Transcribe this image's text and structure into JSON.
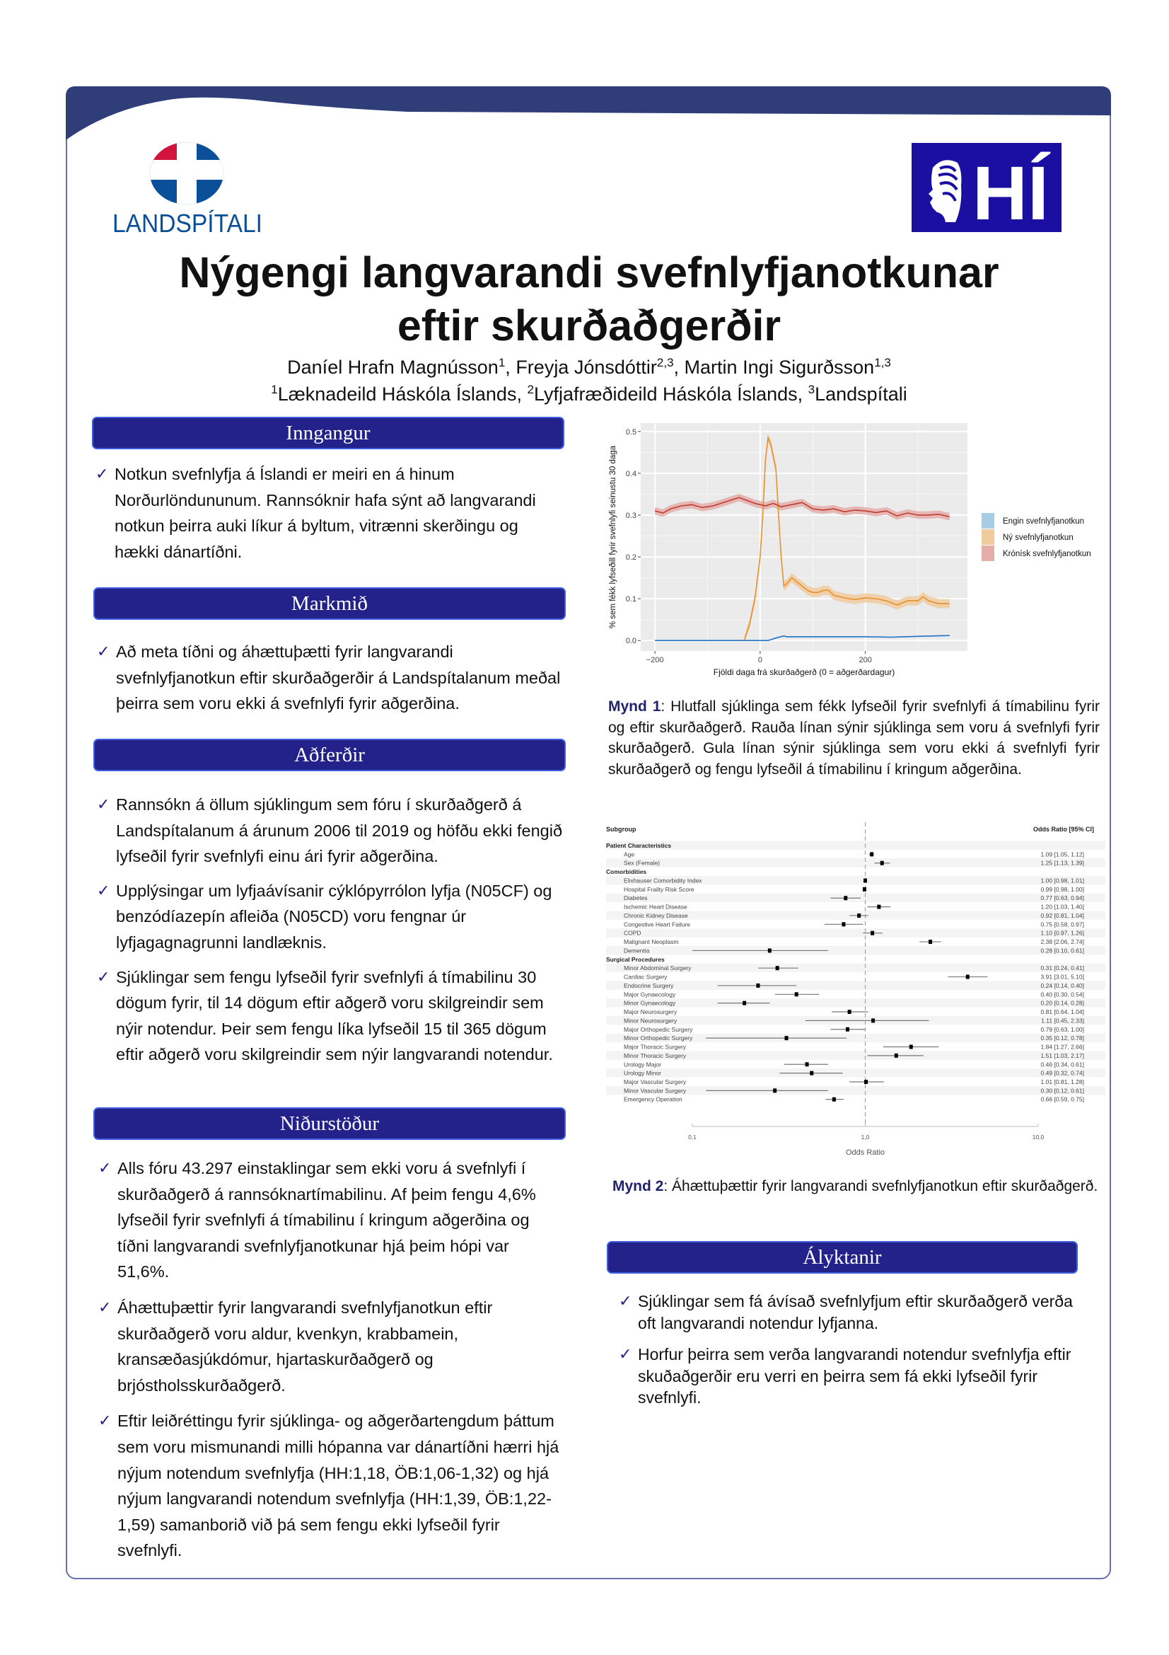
{
  "logos": {
    "left": {
      "text": "LANDSPÍTALI",
      "colors": {
        "red": "#d0143c",
        "blue": "#0c4f99"
      }
    },
    "right": {
      "text": "HÍ",
      "background": "#1a0fa0"
    }
  },
  "header": {
    "title_line1": "Nýgengi langvarandi svefnlyfjanotkunar",
    "title_line2": "eftir skurðaðgerðir",
    "authors": [
      {
        "name": "Daníel Hrafn Magnússon",
        "sup": "1",
        "sep": ", "
      },
      {
        "name": "Freyja Jónsdóttir",
        "sup": "2,3",
        "sep": ", "
      },
      {
        "name": "Martin Ingi Sigurðsson",
        "sup": "1,3",
        "sep": ""
      }
    ],
    "affiliations": [
      {
        "sup": "1",
        "name": "Læknadeild Háskóla Íslands",
        "sep": ", "
      },
      {
        "sup": "2",
        "name": "Lyfjafræðideild Háskóla Íslands",
        "sep": ", "
      },
      {
        "sup": "3",
        "name": "Landspítali",
        "sep": ""
      }
    ]
  },
  "colors": {
    "section_header": "#22228a",
    "frame": "#2f3d78",
    "check": "#22228a"
  },
  "sections": {
    "inngangur": {
      "title": "Inngangur",
      "bullets": [
        "Notkun svefnlyfja á Íslandi er meiri en á hinum Norðurlöndununum. Rannsóknir hafa sýnt að langvarandi notkun þeirra auki líkur á byltum, vitrænni skerðingu og hækki dánartíðni."
      ]
    },
    "markmid": {
      "title": "Markmið",
      "bullets": [
        "Að meta tíðni og áhættuþætti fyrir langvarandi svefnlyfjanotkun eftir skurðaðgerðir á Landspítalanum meðal þeirra sem voru ekki á svefnlyfi fyrir aðgerðina."
      ]
    },
    "adferdir": {
      "title": "Aðferðir",
      "bullets": [
        "Rannsókn á öllum sjúklingum sem fóru í skurðaðgerð á Landspítalanum á árunum 2006 til 2019 og höfðu ekki fengið lyfseðil fyrir svefnlyfi einu ári fyrir aðgerðina.",
        "Upplýsingar um lyfjaávísanir cýklópyrrólon lyfja (N05CF) og benzódíazepín afleiða (N05CD) voru fengnar úr lyfjagagnagrunni landlæknis.",
        "Sjúklingar sem fengu lyfseðil fyrir svefnlyfi á tímabilinu 30 dögum fyrir, til 14 dögum eftir aðgerð voru skilgreindir sem nýir notendur. Þeir sem fengu líka lyfseðil 15 til 365 dögum eftir aðgerð voru skilgreindir sem nýir langvarandi notendur."
      ]
    },
    "nidurstodur": {
      "title": "Niðurstöður",
      "bullets": [
        "Alls fóru 43.297 einstaklingar sem ekki voru á svefnlyfi í skurðaðgerð á rannsóknartímabilinu. Af þeim fengu 4,6% lyfseðil fyrir svefnlyfi á tímabilinu í kringum aðgerðina og tíðni langvarandi svefnlyfjanotkunar hjá þeim hópi var 51,6%.",
        "Áhættuþættir fyrir langvarandi svefnlyfjanotkun eftir skurðaðgerð voru aldur, kvenkyn, krabbamein, kransæðasjúkdómur, hjartaskurðaðgerð og brjóstholsskurðaðgerð.",
        "Eftir leiðréttingu fyrir sjúklinga- og aðgerðartengdum þáttum sem voru mismunandi milli hópanna var dánartíðni hærri hjá nýjum notendum svefnlyfja (HH:1,18, ÖB:1,06-1,32) og hjá nýjum langvarandi notendum svefnlyfja (HH:1,39, ÖB:1,22-1,59) samanborið við þá sem fengu ekki lyfseðil fyrir svefnlyfi."
      ]
    },
    "alyktanir": {
      "title": "Ályktanir",
      "bullets": [
        "Sjúklingar sem fá ávísað svefnlyfjum eftir skurðaðgerð verða oft langvarandi notendur lyfjanna.",
        "Horfur þeirra sem verða langvarandi notendur svefnlyfja eftir skuðaðgerðir eru verri en þeirra sem fá ekki lyfseðil fyrir svefnlyfi."
      ]
    }
  },
  "figures": {
    "fig1_caption": {
      "label": "Mynd 1",
      "text": ": Hlutfall sjúklinga sem fékk lyfseðil fyrir svefnlyfi á tímabilinu fyrir og eftir skurðaðgerð. Rauða línan sýnir sjúklinga sem voru á svefnlyfi fyrir skurðaðgerð. Gula línan sýnir sjúklinga sem voru ekki á svefnlyfi fyrir skurðaðgerð og fengu lyfseðil á tímabilinu í kringum aðgerðina."
    },
    "fig2_caption": {
      "label": "Mynd 2",
      "text": ": Áhættuþættir fyrir langvarandi svefnlyfjanotkun eftir skurðaðgerð."
    }
  },
  "chart_data": [
    {
      "type": "line",
      "xlabel": "Fjöldi daga frá skurðaðgerð (0 = aðgerðardagur)",
      "ylabel": "% sem fékk lyfseðill fyrir svefnlyfi seinustu 30 daga",
      "xlim": [
        -227,
        394
      ],
      "ylim": [
        -0.025,
        0.52
      ],
      "xticks": [
        -200,
        0,
        200
      ],
      "xtick_labels": [
        "−200",
        "0",
        "200"
      ],
      "yticks": [
        0.0,
        0.1,
        0.2,
        0.3,
        0.4,
        0.5
      ],
      "ytick_labels": [
        "0.0",
        "0.1",
        "0.2",
        "0.3",
        "0.4",
        "0.5"
      ],
      "grid": true,
      "background": "#ebebeb",
      "legend_position": "right",
      "series": [
        {
          "name": "Engin svefnlyfjanotkun",
          "color": "#2272c3",
          "band_color": "#a6cde3",
          "ci_halfwidth": 0.001,
          "points": [
            [
              -200,
              0
            ],
            [
              15,
              0
            ],
            [
              30,
              0.006
            ],
            [
              45,
              0.011
            ],
            [
              50,
              0.009
            ],
            [
              100,
              0.009
            ],
            [
              200,
              0.009
            ],
            [
              250,
              0.008
            ],
            [
              300,
              0.01
            ],
            [
              360,
              0.012
            ]
          ]
        },
        {
          "name": "Ný svefnlyfjanotkun",
          "color": "#e8902a",
          "band_color": "#f0cba0",
          "ci_halfwidth": 0.011,
          "points": [
            [
              -30,
              0
            ],
            [
              -20,
              0.04
            ],
            [
              -10,
              0.1
            ],
            [
              0,
              0.2
            ],
            [
              5,
              0.3
            ],
            [
              10,
              0.43
            ],
            [
              15,
              0.485
            ],
            [
              20,
              0.47
            ],
            [
              30,
              0.41
            ],
            [
              35,
              0.3
            ],
            [
              40,
              0.2
            ],
            [
              45,
              0.13
            ],
            [
              50,
              0.135
            ],
            [
              60,
              0.15
            ],
            [
              70,
              0.14
            ],
            [
              80,
              0.13
            ],
            [
              90,
              0.12
            ],
            [
              100,
              0.115
            ],
            [
              110,
              0.115
            ],
            [
              120,
              0.12
            ],
            [
              130,
              0.12
            ],
            [
              140,
              0.108
            ],
            [
              160,
              0.102
            ],
            [
              180,
              0.098
            ],
            [
              200,
              0.102
            ],
            [
              220,
              0.1
            ],
            [
              240,
              0.095
            ],
            [
              260,
              0.085
            ],
            [
              280,
              0.095
            ],
            [
              300,
              0.095
            ],
            [
              310,
              0.105
            ],
            [
              320,
              0.095
            ],
            [
              340,
              0.088
            ],
            [
              360,
              0.088
            ]
          ]
        },
        {
          "name": "Krónísk svefnlyfjanotkun",
          "color": "#c23a2e",
          "band_color": "#e3aeaa",
          "ci_halfwidth": 0.009,
          "points": [
            [
              -200,
              0.31
            ],
            [
              -185,
              0.305
            ],
            [
              -170,
              0.315
            ],
            [
              -150,
              0.322
            ],
            [
              -130,
              0.325
            ],
            [
              -110,
              0.318
            ],
            [
              -90,
              0.322
            ],
            [
              -70,
              0.33
            ],
            [
              -50,
              0.338
            ],
            [
              -40,
              0.342
            ],
            [
              -25,
              0.335
            ],
            [
              -10,
              0.328
            ],
            [
              0,
              0.325
            ],
            [
              10,
              0.322
            ],
            [
              25,
              0.328
            ],
            [
              40,
              0.32
            ],
            [
              60,
              0.325
            ],
            [
              80,
              0.33
            ],
            [
              100,
              0.315
            ],
            [
              120,
              0.312
            ],
            [
              140,
              0.315
            ],
            [
              160,
              0.308
            ],
            [
              180,
              0.312
            ],
            [
              200,
              0.31
            ],
            [
              220,
              0.306
            ],
            [
              240,
              0.31
            ],
            [
              260,
              0.298
            ],
            [
              280,
              0.305
            ],
            [
              300,
              0.3
            ],
            [
              320,
              0.3
            ],
            [
              340,
              0.302
            ],
            [
              360,
              0.296
            ]
          ]
        }
      ]
    },
    {
      "type": "forest",
      "xlabel": "Odds Ratio",
      "col_subgroup": "Subgroup",
      "col_or": "Odds Ratio [95% CI]",
      "x_scale": "log",
      "xlim": [
        0.1,
        10
      ],
      "xticks": [
        0.1,
        1,
        10
      ],
      "xtick_labels": [
        "0,1",
        "1,0",
        "10,0"
      ],
      "reference_line": 1,
      "rows": [
        {
          "header": true,
          "label": "Patient Characteristics"
        },
        {
          "label": "Age",
          "or": 1.09,
          "lo": 1.05,
          "hi": 1.12,
          "text": "1.09 [1.05, 1.12]"
        },
        {
          "label": "Sex (Female)",
          "or": 1.25,
          "lo": 1.13,
          "hi": 1.39,
          "text": "1.25 [1.13, 1.39]"
        },
        {
          "header": true,
          "label": "Comorbidities"
        },
        {
          "label": "Elixhauser Comorbidity Index",
          "or": 1.0,
          "lo": 0.98,
          "hi": 1.01,
          "text": "1.00 [0.98, 1.01]"
        },
        {
          "label": "Hospital Frailty Risk Score",
          "or": 0.99,
          "lo": 0.98,
          "hi": 1.0,
          "text": "0.99 [0.98, 1.00]"
        },
        {
          "label": "Diabetes",
          "or": 0.77,
          "lo": 0.63,
          "hi": 0.94,
          "text": "0.77 [0.63, 0.94]"
        },
        {
          "label": "Ischemic Heart Disease",
          "or": 1.2,
          "lo": 1.03,
          "hi": 1.4,
          "text": "1.20 [1.03, 1.40]"
        },
        {
          "label": "Chronic Kidney Disease",
          "or": 0.92,
          "lo": 0.81,
          "hi": 1.04,
          "text": "0.92 [0.81, 1.04]"
        },
        {
          "label": "Congestive Heart Failure",
          "or": 0.75,
          "lo": 0.58,
          "hi": 0.97,
          "text": "0.75 [0.58, 0.97]"
        },
        {
          "label": "COPD",
          "or": 1.1,
          "lo": 0.97,
          "hi": 1.26,
          "text": "1.10 [0.97, 1.26]"
        },
        {
          "label": "Malignant Neoplasm",
          "or": 2.38,
          "lo": 2.06,
          "hi": 2.74,
          "text": "2.38 [2.06, 2.74]"
        },
        {
          "label": "Dementia",
          "or": 0.28,
          "lo": 0.1,
          "hi": 0.61,
          "text": "0.28 [0.10, 0.61]"
        },
        {
          "header": true,
          "label": "Surgical Procedures"
        },
        {
          "label": "Minor Abdominal Surgery",
          "or": 0.31,
          "lo": 0.24,
          "hi": 0.41,
          "text": "0.31 [0.24, 0.41]"
        },
        {
          "label": "Cardiac Surgery",
          "or": 3.91,
          "lo": 3.01,
          "hi": 5.1,
          "text": "3.91 [3.01, 5.10]"
        },
        {
          "label": "Endocrine Surgery",
          "or": 0.24,
          "lo": 0.14,
          "hi": 0.4,
          "text": "0.24 [0.14, 0.40]"
        },
        {
          "label": "Major Gynaecology",
          "or": 0.4,
          "lo": 0.3,
          "hi": 0.54,
          "text": "0.40 [0.30, 0.54]"
        },
        {
          "label": "Minor Gynaecology",
          "or": 0.2,
          "lo": 0.14,
          "hi": 0.28,
          "text": "0.20 [0.14, 0.28]"
        },
        {
          "label": "Major Neurosurgery",
          "or": 0.81,
          "lo": 0.64,
          "hi": 1.04,
          "text": "0.81 [0.64, 1.04]"
        },
        {
          "label": "Minor Neurosurgery",
          "or": 1.11,
          "lo": 0.45,
          "hi": 2.33,
          "text": "1.11 [0.45, 2.33]"
        },
        {
          "label": "Major Orthopedic Surgery",
          "or": 0.79,
          "lo": 0.63,
          "hi": 1.0,
          "text": "0.79 [0.63, 1.00]"
        },
        {
          "label": "Minor Orthopedic Surgery",
          "or": 0.35,
          "lo": 0.12,
          "hi": 0.78,
          "text": "0.35 [0.12, 0.78]"
        },
        {
          "label": "Major Thoracic Surgery",
          "or": 1.84,
          "lo": 1.27,
          "hi": 2.66,
          "text": "1.84 [1.27, 2.66]"
        },
        {
          "label": "Minor Thoracic Surgery",
          "or": 1.51,
          "lo": 1.03,
          "hi": 2.17,
          "text": "1.51 [1.03, 2.17]"
        },
        {
          "label": "Urology Major",
          "or": 0.46,
          "lo": 0.34,
          "hi": 0.61,
          "text": "0.46 [0.34, 0.61]"
        },
        {
          "label": "Urology Minor",
          "or": 0.49,
          "lo": 0.32,
          "hi": 0.74,
          "text": "0.49 [0.32, 0.74]"
        },
        {
          "label": "Major Vascular Surgery",
          "or": 1.01,
          "lo": 0.81,
          "hi": 1.28,
          "text": "1.01 [0.81, 1.28]"
        },
        {
          "label": "Minor Vascular Surgery",
          "or": 0.3,
          "lo": 0.12,
          "hi": 0.61,
          "text": "0.30 [0.12, 0.61]"
        },
        {
          "label": "Emergency Operation",
          "or": 0.66,
          "lo": 0.59,
          "hi": 0.75,
          "text": "0.66 [0.59, 0.75]"
        }
      ]
    }
  ]
}
